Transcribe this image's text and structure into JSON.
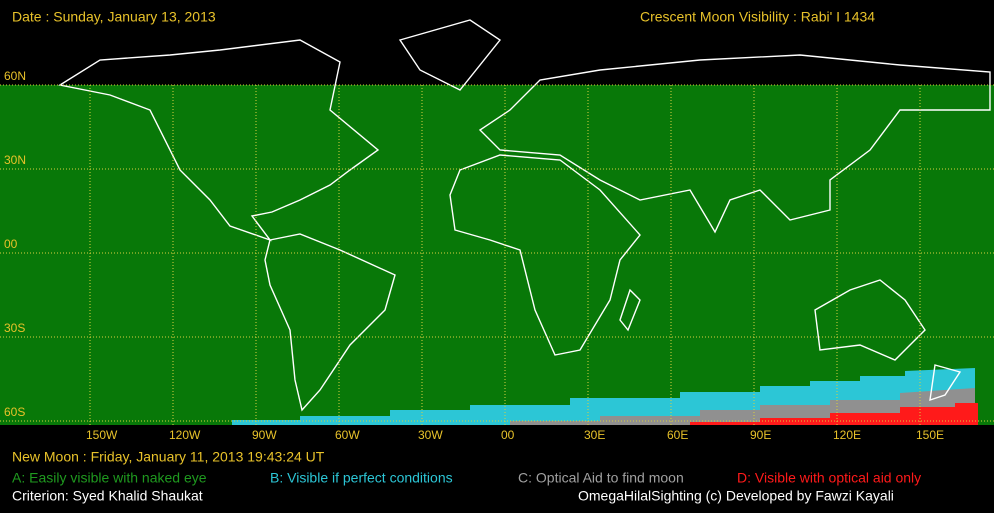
{
  "header": {
    "date": "Date : Sunday, January 13, 2013",
    "title": "Crescent Moon Visibility : Rabi' I  1434"
  },
  "latitude_labels": [
    "60N",
    "30N",
    "00",
    "30S",
    "60S"
  ],
  "longitude_labels": [
    "150W",
    "120W",
    "90W",
    "60W",
    "30W",
    "00",
    "30E",
    "60E",
    "90E",
    "120E",
    "150E"
  ],
  "footer": {
    "new_moon": "New Moon : Friday, January 11, 2013  19:43:24  UT",
    "criterion": "Criterion: Syed Khalid Shaukat",
    "credit": "OmegaHilalSighting  (c)  Developed by Fawzi Kayali"
  },
  "legend": [
    {
      "label": "A: Easily visible with naked eye",
      "color": "#1f9a1f"
    },
    {
      "label": "B: Visible if perfect conditions",
      "color": "#2cc6d6"
    },
    {
      "label": "C: Optical Aid to find moon",
      "color": "#a0a0a0"
    },
    {
      "label": "D: Visible with optical aid only",
      "color": "#ff1a1a"
    }
  ]
}
